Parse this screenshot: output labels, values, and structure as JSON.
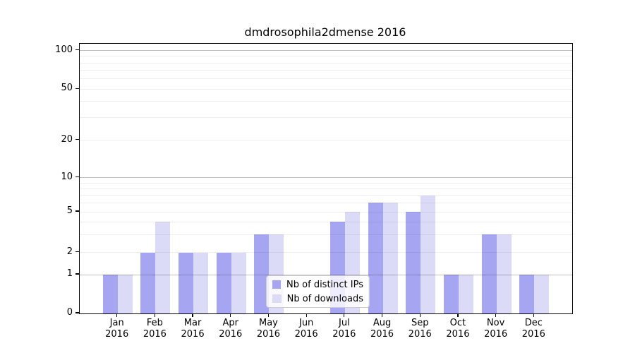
{
  "title": "dmdrosophila2dmense 2016",
  "chart_data": {
    "type": "bar",
    "title": "dmdrosophila2dmense 2016",
    "categories": [
      "Jan",
      "Feb",
      "Mar",
      "Apr",
      "May",
      "Jun",
      "Jul",
      "Aug",
      "Sep",
      "Oct",
      "Nov",
      "Dec"
    ],
    "x_sublabel": "2016",
    "series": [
      {
        "name": "Nb of distinct IPs",
        "color": "#a5a5f2",
        "values": [
          1,
          2,
          2,
          2,
          3,
          0,
          4,
          6,
          5,
          1,
          3,
          1
        ]
      },
      {
        "name": "Nb of downloads",
        "color": "#dbdbf8",
        "values": [
          1,
          4,
          2,
          2,
          3,
          0,
          5,
          6,
          7,
          1,
          3,
          1
        ]
      }
    ],
    "xlabel": "",
    "ylabel": "",
    "ylim": [
      0,
      100
    ],
    "yscale": "log-like (compressed near 1, linear 0-1 segment)",
    "yticks": [
      100,
      50,
      20,
      10,
      5,
      2,
      1,
      0
    ],
    "major_gridlines": [
      1,
      10,
      100
    ],
    "minor_gridlines": [
      2,
      3,
      4,
      5,
      6,
      7,
      8,
      9,
      20,
      30,
      40,
      50,
      60,
      70,
      80,
      90
    ],
    "grid": true,
    "legend_position": "lower center"
  },
  "colors": {
    "bar_distinct_ips": "#a5a5f2",
    "bar_downloads": "#dbdbf8",
    "grid_minor": "rgba(0,0,0,0.065)",
    "grid_major": "rgba(0,0,0,0.25)",
    "spine": "#000000",
    "background": "#ffffff",
    "text": "#000000"
  }
}
